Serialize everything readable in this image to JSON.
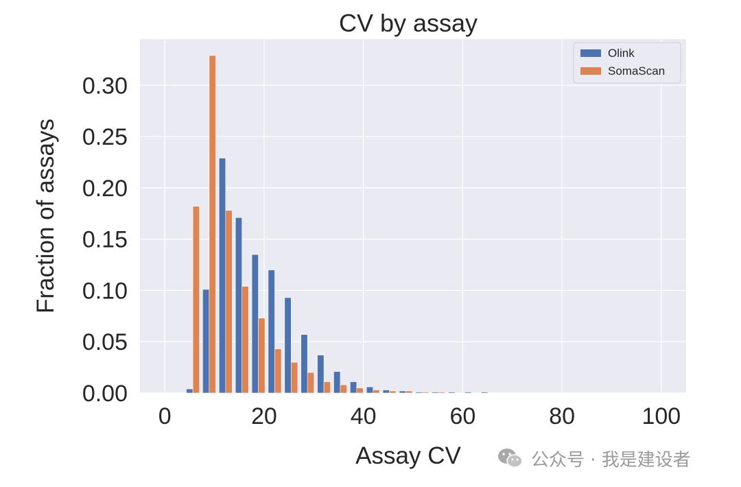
{
  "chart_data": {
    "type": "bar",
    "title": "CV by assay",
    "xlabel": "Assay CV",
    "ylabel": "Fraction of assays",
    "xlim": [
      -5,
      105
    ],
    "ylim": [
      0,
      0.345
    ],
    "x_ticks": [
      "0",
      "20",
      "40",
      "60",
      "80",
      "100"
    ],
    "y_ticks": [
      "0.00",
      "0.05",
      "0.10",
      "0.15",
      "0.20",
      "0.25",
      "0.30"
    ],
    "grid": true,
    "legend_position": "top-right",
    "bin_width": 3.3,
    "bin_start": 4.0,
    "series": [
      {
        "name": "Olink",
        "color": "#4c72b0",
        "values": [
          0.004,
          0.101,
          0.229,
          0.171,
          0.135,
          0.12,
          0.093,
          0.057,
          0.037,
          0.021,
          0.011,
          0.006,
          0.003,
          0.002,
          0.001,
          0.001,
          0.001,
          0.001,
          0.001,
          0.0,
          0.0,
          0.0,
          0.0,
          0.0,
          0.0,
          0.0,
          0.0,
          0.0,
          0.0
        ]
      },
      {
        "name": "SomaScan",
        "color": "#dd8452",
        "values": [
          0.182,
          0.329,
          0.178,
          0.104,
          0.073,
          0.043,
          0.03,
          0.02,
          0.011,
          0.008,
          0.005,
          0.003,
          0.002,
          0.002,
          0.001,
          0.001,
          0.0,
          0.0,
          0.0,
          0.0,
          0.0,
          0.0,
          0.0,
          0.0,
          0.0,
          0.0,
          0.0,
          0.0,
          0.0
        ]
      }
    ]
  },
  "watermark": {
    "text": "公众号 · 我是建设者",
    "icon": "wechat-icon"
  }
}
